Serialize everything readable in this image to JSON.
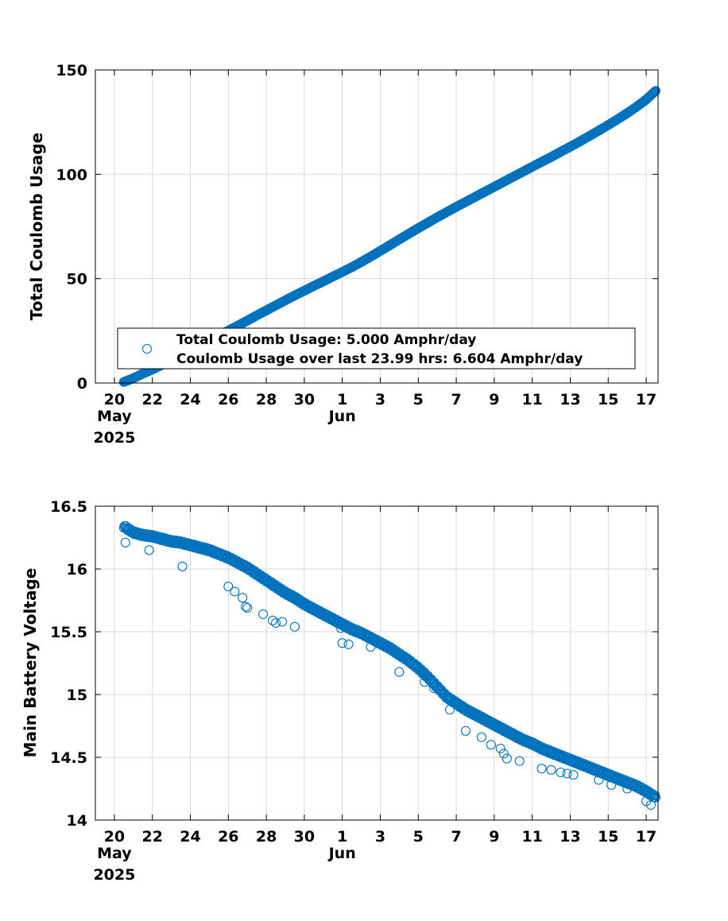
{
  "colors": {
    "marker": "#0072BD",
    "grid": "#d9d9d9",
    "axis": "#000000",
    "background": "#ffffff"
  },
  "chart_data": [
    {
      "type": "scatter",
      "title": "",
      "xlabel": "",
      "ylabel": "Total Coulomb Usage",
      "xaxis": {
        "type": "date",
        "range": [
          "2025-05-19",
          "2025-06-17T15:00"
        ],
        "tick_values": [
          "2025-05-20",
          "2025-05-22",
          "2025-05-24",
          "2025-05-26",
          "2025-05-28",
          "2025-05-30",
          "2025-06-01",
          "2025-06-03",
          "2025-06-05",
          "2025-06-07",
          "2025-06-09",
          "2025-06-11",
          "2025-06-13",
          "2025-06-15",
          "2025-06-17"
        ],
        "tick_labels": [
          "20",
          "22",
          "24",
          "26",
          "28",
          "30",
          "1",
          "3",
          "5",
          "7",
          "9",
          "11",
          "13",
          "15",
          "17"
        ],
        "month_labels": [
          {
            "at": "2025-05-20",
            "text": "May"
          },
          {
            "at": "2025-06-01",
            "text": "Jun"
          }
        ],
        "year_label": "2025"
      },
      "ylim": [
        0,
        150
      ],
      "yticks": [
        0,
        50,
        100,
        150
      ],
      "grid": true,
      "marker": "open-circle",
      "legend": {
        "placement": "bottom-right",
        "entries": [
          "Total Coulomb Usage:  5.000 Amphr/day",
          "Coulomb Usage over last 23.99 hrs:  6.604 Amphr/day"
        ]
      },
      "series": [
        {
          "x": [
            "2025-05-20T12:00",
            "2025-05-21",
            "2025-05-21T12:00",
            "2025-05-22",
            "2025-05-22T12:00",
            "2025-05-23",
            "2025-05-23T12:00",
            "2025-05-24",
            "2025-05-24T12:00",
            "2025-05-25",
            "2025-05-25T12:00",
            "2025-05-26",
            "2025-05-26T12:00",
            "2025-05-27",
            "2025-05-27T12:00",
            "2025-05-28",
            "2025-05-28T12:00",
            "2025-05-29",
            "2025-05-29T12:00",
            "2025-05-30",
            "2025-05-30T12:00",
            "2025-05-31",
            "2025-05-31T12:00",
            "2025-06-01",
            "2025-06-01T12:00",
            "2025-06-02",
            "2025-06-02T12:00",
            "2025-06-03",
            "2025-06-03T12:00",
            "2025-06-04",
            "2025-06-04T12:00",
            "2025-06-05",
            "2025-06-05T12:00",
            "2025-06-06",
            "2025-06-06T12:00",
            "2025-06-07",
            "2025-06-07T12:00",
            "2025-06-08",
            "2025-06-08T12:00",
            "2025-06-09",
            "2025-06-09T12:00",
            "2025-06-10",
            "2025-06-10T12:00",
            "2025-06-11",
            "2025-06-11T12:00",
            "2025-06-12",
            "2025-06-12T12:00",
            "2025-06-13",
            "2025-06-13T12:00",
            "2025-06-14",
            "2025-06-14T12:00",
            "2025-06-15",
            "2025-06-15T12:00",
            "2025-06-16",
            "2025-06-16T12:00",
            "2025-06-17",
            "2025-06-17T12:00"
          ],
          "y": [
            0.5,
            2.3,
            4.5,
            6.5,
            8.7,
            11,
            13.3,
            15.7,
            18,
            20.5,
            22.8,
            25.1,
            27.5,
            29.9,
            32.4,
            34.8,
            37.2,
            39.6,
            42,
            44.2,
            46.5,
            48.7,
            51,
            53.2,
            55.5,
            58,
            60.6,
            63.3,
            66,
            68.8,
            71.5,
            74.2,
            76.8,
            79.4,
            81.9,
            84.4,
            86.8,
            89.2,
            91.6,
            94,
            96.4,
            98.8,
            101.2,
            103.6,
            106,
            108.3,
            110.8,
            113.2,
            115.7,
            118.3,
            120.9,
            123.6,
            126.4,
            129.3,
            132.4,
            135.8,
            140
          ]
        }
      ]
    },
    {
      "type": "scatter",
      "title": "",
      "xlabel": "",
      "ylabel": "Main Battery Voltage",
      "xaxis": {
        "type": "date",
        "range": [
          "2025-05-19",
          "2025-06-17T15:00"
        ],
        "tick_values": [
          "2025-05-20",
          "2025-05-22",
          "2025-05-24",
          "2025-05-26",
          "2025-05-28",
          "2025-05-30",
          "2025-06-01",
          "2025-06-03",
          "2025-06-05",
          "2025-06-07",
          "2025-06-09",
          "2025-06-11",
          "2025-06-13",
          "2025-06-15",
          "2025-06-17"
        ],
        "tick_labels": [
          "20",
          "22",
          "24",
          "26",
          "28",
          "30",
          "1",
          "3",
          "5",
          "7",
          "9",
          "11",
          "13",
          "15",
          "17"
        ],
        "month_labels": [
          {
            "at": "2025-05-20",
            "text": "May"
          },
          {
            "at": "2025-06-01",
            "text": "Jun"
          }
        ],
        "year_label": "2025"
      },
      "ylim": [
        14,
        16.5
      ],
      "yticks": [
        14,
        14.5,
        15,
        15.5,
        16,
        16.5
      ],
      "ytick_labels": [
        "14",
        "14.5",
        "15",
        "15.5",
        "16",
        "16.5"
      ],
      "grid": true,
      "marker": "open-circle",
      "series": [
        {
          "x": [
            "2025-05-20T12:00",
            "2025-05-21",
            "2025-05-21T12:00",
            "2025-05-22",
            "2025-05-22T12:00",
            "2025-05-23",
            "2025-05-23T12:00",
            "2025-05-24",
            "2025-05-24T12:00",
            "2025-05-25",
            "2025-05-25T12:00",
            "2025-05-26",
            "2025-05-26T12:00",
            "2025-05-27",
            "2025-05-27T12:00",
            "2025-05-28",
            "2025-05-28T12:00",
            "2025-05-29",
            "2025-05-29T12:00",
            "2025-05-30",
            "2025-05-30T12:00",
            "2025-05-31",
            "2025-05-31T12:00",
            "2025-06-01",
            "2025-06-01T12:00",
            "2025-06-02",
            "2025-06-02T12:00",
            "2025-06-03",
            "2025-06-03T12:00",
            "2025-06-04",
            "2025-06-04T12:00",
            "2025-06-05",
            "2025-06-05T12:00",
            "2025-06-06",
            "2025-06-06T12:00",
            "2025-06-07",
            "2025-06-07T12:00",
            "2025-06-08",
            "2025-06-08T12:00",
            "2025-06-09",
            "2025-06-09T12:00",
            "2025-06-10",
            "2025-06-10T12:00",
            "2025-06-11",
            "2025-06-11T12:00",
            "2025-06-12",
            "2025-06-12T12:00",
            "2025-06-13",
            "2025-06-13T12:00",
            "2025-06-14",
            "2025-06-14T12:00",
            "2025-06-15",
            "2025-06-15T12:00",
            "2025-06-16",
            "2025-06-16T12:00",
            "2025-06-17",
            "2025-06-17T12:00"
          ],
          "y": [
            16.34,
            16.29,
            16.27,
            16.26,
            16.24,
            16.22,
            16.21,
            16.19,
            16.17,
            16.15,
            16.12,
            16.09,
            16.05,
            16.01,
            15.96,
            15.91,
            15.86,
            15.81,
            15.77,
            15.72,
            15.68,
            15.64,
            15.6,
            15.56,
            15.52,
            15.49,
            15.45,
            15.41,
            15.37,
            15.32,
            15.27,
            15.21,
            15.14,
            15.06,
            14.98,
            14.93,
            14.88,
            14.84,
            14.8,
            14.76,
            14.72,
            14.68,
            14.64,
            14.61,
            14.57,
            14.54,
            14.51,
            14.48,
            14.45,
            14.42,
            14.39,
            14.36,
            14.33,
            14.3,
            14.27,
            14.23,
            14.18
          ]
        },
        {
          "x": [
            "2025-05-20T14:00",
            "2025-05-21T20:00",
            "2025-05-23T14:00",
            "2025-05-26",
            "2025-05-26T08:00",
            "2025-05-26T18:00",
            "2025-05-26T22:00",
            "2025-05-27",
            "2025-05-27T20:00",
            "2025-05-28T08:00",
            "2025-05-28T12:00",
            "2025-05-28T20:00",
            "2025-05-29T12:00",
            "2025-05-31T22:00",
            "2025-06-01",
            "2025-06-01T08:00",
            "2025-06-02T12:00",
            "2025-06-04",
            "2025-06-05T08:00",
            "2025-06-05T20:00",
            "2025-06-06T16:00",
            "2025-06-07T12:00",
            "2025-06-08T08:00",
            "2025-06-08T20:00",
            "2025-06-09T08:00",
            "2025-06-09T12:00",
            "2025-06-09T16:00",
            "2025-06-10T08:00",
            "2025-06-11T12:00",
            "2025-06-12",
            "2025-06-12T12:00",
            "2025-06-12T20:00",
            "2025-06-13T04:00",
            "2025-06-14T12:00",
            "2025-06-15T04:00",
            "2025-06-16",
            "2025-06-17",
            "2025-06-17T06:00"
          ],
          "y": [
            16.21,
            16.15,
            16.02,
            15.86,
            15.82,
            15.77,
            15.7,
            15.69,
            15.64,
            15.59,
            15.57,
            15.58,
            15.54,
            15.53,
            15.41,
            15.4,
            15.38,
            15.18,
            15.1,
            15.05,
            14.88,
            14.71,
            14.66,
            14.6,
            14.57,
            14.53,
            14.49,
            14.47,
            14.41,
            14.4,
            14.38,
            14.37,
            14.36,
            14.32,
            14.28,
            14.25,
            14.15,
            14.12
          ]
        }
      ]
    }
  ]
}
